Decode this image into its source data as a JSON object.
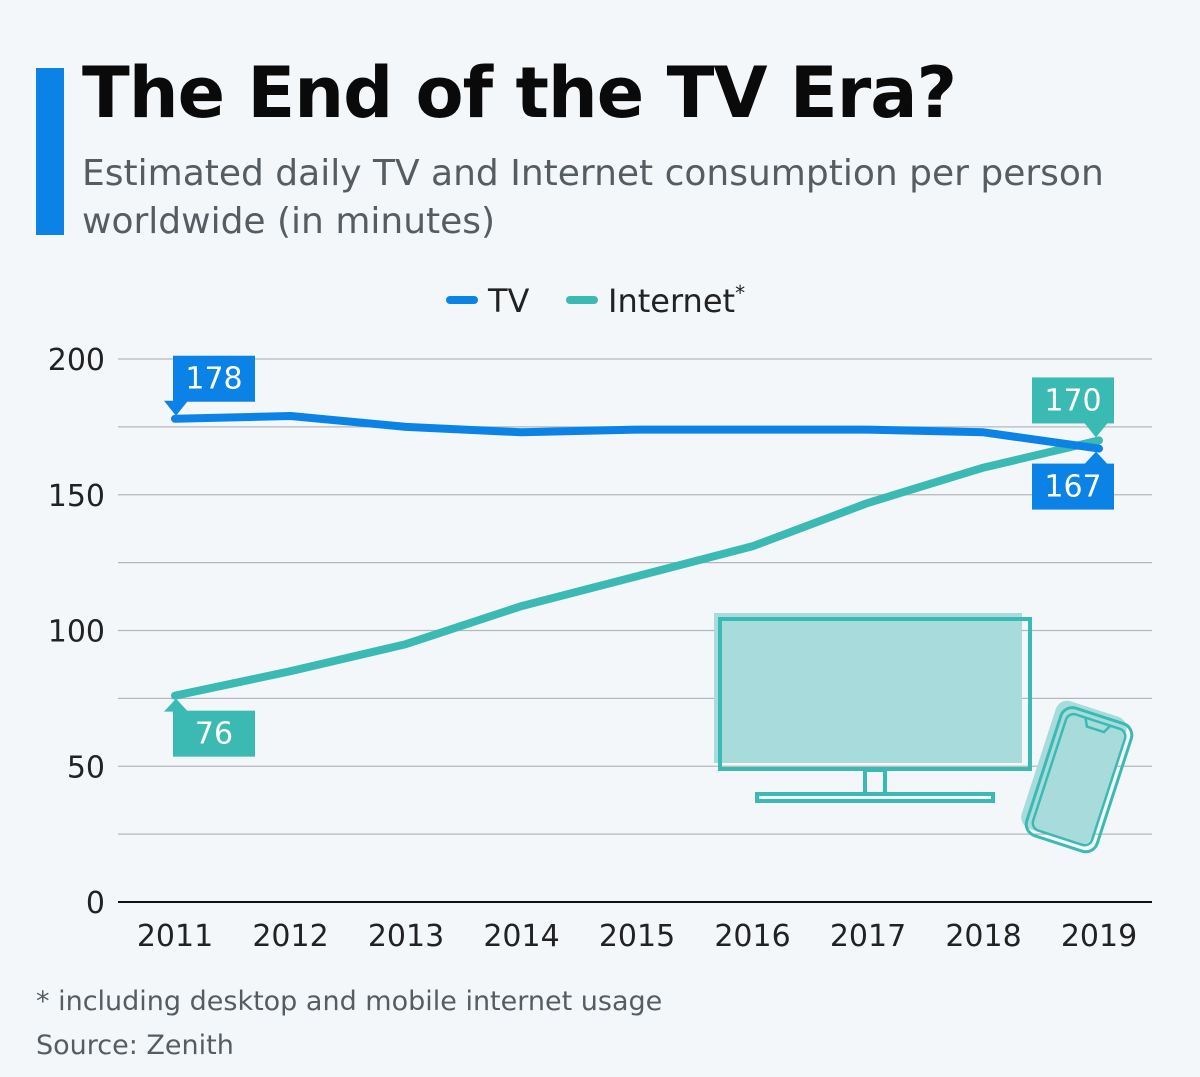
{
  "header": {
    "title": "The End of the TV Era?",
    "subtitle": "Estimated daily TV and Internet consumption per person worldwide (in minutes)"
  },
  "footer": {
    "footnote": "* including desktop and mobile internet usage",
    "source": "Source: Zenith"
  },
  "colors": {
    "tv": "#0b83e6",
    "internet": "#3bbab3",
    "grid": "#b3b8bd",
    "axis_text": "#222222",
    "illustration_fill": "#a8dcdc",
    "illustration_stroke": "#3bbab3"
  },
  "illustration": {
    "icons": [
      "tv-monitor-icon",
      "smartphone-icon"
    ]
  },
  "chart_data": {
    "type": "line",
    "title": "The End of the TV Era?",
    "subtitle": "Estimated daily TV and Internet consumption per person worldwide (in minutes)",
    "xlabel": "",
    "ylabel": "",
    "x": [
      "2011",
      "2012",
      "2013",
      "2014",
      "2015",
      "2016",
      "2017",
      "2018",
      "2019"
    ],
    "ylim": [
      0,
      200
    ],
    "yticks": [
      0,
      50,
      100,
      150,
      200
    ],
    "grid": true,
    "legend_position": "top-center",
    "series": [
      {
        "name": "TV",
        "values": [
          178,
          179,
          175,
          173,
          174,
          174,
          174,
          173,
          167
        ],
        "labeled_points": [
          {
            "index": 0,
            "label": "178"
          },
          {
            "index": 8,
            "label": "167"
          }
        ]
      },
      {
        "name": "Internet*",
        "values": [
          76,
          85,
          95,
          109,
          120,
          131,
          147,
          160,
          170
        ],
        "labeled_points": [
          {
            "index": 0,
            "label": "76"
          },
          {
            "index": 8,
            "label": "170"
          }
        ]
      }
    ]
  }
}
